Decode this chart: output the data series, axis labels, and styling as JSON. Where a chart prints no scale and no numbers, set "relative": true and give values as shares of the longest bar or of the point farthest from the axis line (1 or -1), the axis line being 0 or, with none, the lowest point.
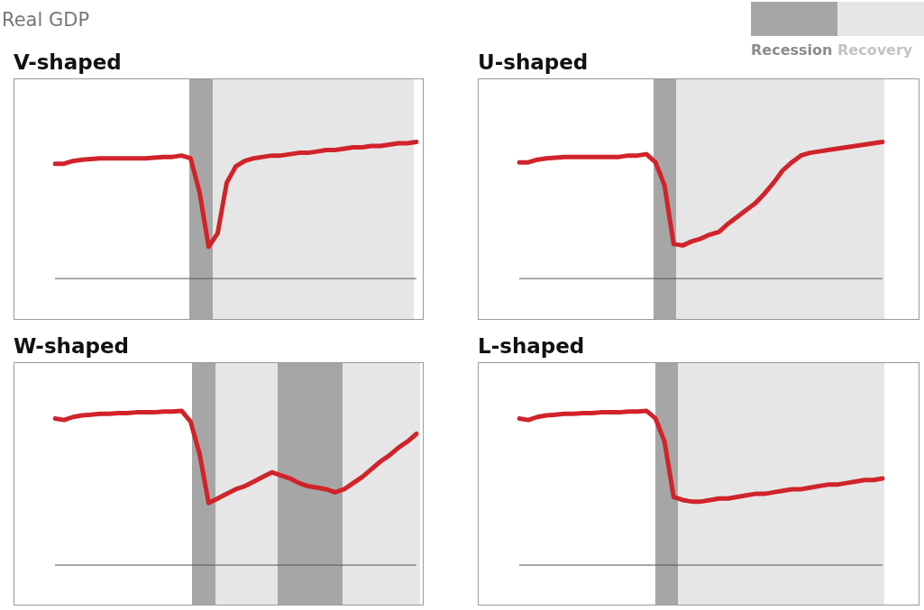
{
  "chart_data": [
    {
      "type": "line",
      "title": "V-shaped",
      "ylabel": "Real GDP",
      "relative": true,
      "annotations": [
        "Recession",
        "Recovery"
      ],
      "categories": [
        null,
        null,
        null,
        null,
        null,
        null,
        null,
        null,
        null,
        null,
        null,
        null,
        null,
        null,
        null,
        null,
        null,
        null,
        null,
        null,
        null,
        null,
        null,
        null,
        null,
        null,
        null,
        null,
        null,
        null,
        null,
        null,
        null,
        null,
        null,
        null,
        null,
        null,
        null,
        null,
        null
      ],
      "series": [
        {
          "color": "#d1232a",
          "values": [
            0.84,
            0.84,
            0.86,
            0.87,
            0.875,
            0.88,
            0.88,
            0.88,
            0.88,
            0.88,
            0.88,
            0.885,
            0.89,
            0.89,
            0.9,
            0.88,
            0.63,
            0.23,
            0.33,
            0.7,
            0.82,
            0.86,
            0.88,
            0.89,
            0.9,
            0.9,
            0.91,
            0.92,
            0.92,
            0.93,
            0.94,
            0.94,
            0.95,
            0.96,
            0.96,
            0.97,
            0.97,
            0.98,
            0.99,
            0.99,
            1
          ]
        }
      ]
    },
    {
      "type": "line",
      "title": "U-shaped",
      "relative": true,
      "categories": [
        null,
        null,
        null,
        null,
        null,
        null,
        null,
        null,
        null,
        null,
        null,
        null,
        null,
        null,
        null,
        null,
        null,
        null,
        null,
        null,
        null,
        null,
        null,
        null,
        null,
        null,
        null,
        null,
        null,
        null,
        null,
        null,
        null,
        null,
        null,
        null,
        null,
        null,
        null,
        null,
        null
      ],
      "series": [
        {
          "color": "#d1232a",
          "values": [
            0.85,
            0.85,
            0.87,
            0.88,
            0.885,
            0.89,
            0.89,
            0.89,
            0.89,
            0.89,
            0.89,
            0.89,
            0.9,
            0.9,
            0.91,
            0.85,
            0.68,
            0.25,
            0.24,
            0.27,
            0.29,
            0.32,
            0.34,
            0.4,
            0.45,
            0.5,
            0.55,
            0.62,
            0.7,
            0.79,
            0.85,
            0.9,
            0.92,
            0.93,
            0.94,
            0.95,
            0.96,
            0.97,
            0.98,
            0.99,
            1
          ]
        }
      ]
    },
    {
      "type": "line",
      "title": "W-shaped",
      "relative": true,
      "categories": [
        null,
        null,
        null,
        null,
        null,
        null,
        null,
        null,
        null,
        null,
        null,
        null,
        null,
        null,
        null,
        null,
        null,
        null,
        null,
        null,
        null,
        null,
        null,
        null,
        null,
        null,
        null,
        null,
        null,
        null,
        null,
        null,
        null,
        null,
        null,
        null,
        null,
        null,
        null,
        null,
        null
      ],
      "series": [
        {
          "color": "#d1232a",
          "values": [
            0.95,
            0.94,
            0.96,
            0.97,
            0.975,
            0.98,
            0.98,
            0.985,
            0.985,
            0.99,
            0.99,
            0.99,
            0.995,
            0.995,
            1,
            0.93,
            0.72,
            0.4,
            0.43,
            0.46,
            0.49,
            0.51,
            0.54,
            0.57,
            0.6,
            0.58,
            0.56,
            0.53,
            0.51,
            0.5,
            0.49,
            0.47,
            0.49,
            0.53,
            0.57,
            0.62,
            0.67,
            0.71,
            0.76,
            0.8,
            0.85
          ]
        }
      ]
    },
    {
      "type": "line",
      "title": "L-shaped",
      "relative": true,
      "categories": [
        null,
        null,
        null,
        null,
        null,
        null,
        null,
        null,
        null,
        null,
        null,
        null,
        null,
        null,
        null,
        null,
        null,
        null,
        null,
        null,
        null,
        null,
        null,
        null,
        null,
        null,
        null,
        null,
        null,
        null,
        null,
        null,
        null,
        null,
        null,
        null,
        null,
        null,
        null,
        null,
        null
      ],
      "series": [
        {
          "color": "#d1232a",
          "values": [
            0.95,
            0.94,
            0.96,
            0.97,
            0.975,
            0.98,
            0.98,
            0.985,
            0.985,
            0.99,
            0.99,
            0.99,
            0.995,
            0.995,
            1,
            0.95,
            0.8,
            0.44,
            0.42,
            0.41,
            0.41,
            0.42,
            0.43,
            0.43,
            0.44,
            0.45,
            0.46,
            0.46,
            0.47,
            0.48,
            0.49,
            0.49,
            0.5,
            0.51,
            0.52,
            0.52,
            0.53,
            0.54,
            0.55,
            0.55,
            0.56
          ]
        }
      ]
    }
  ]
}
